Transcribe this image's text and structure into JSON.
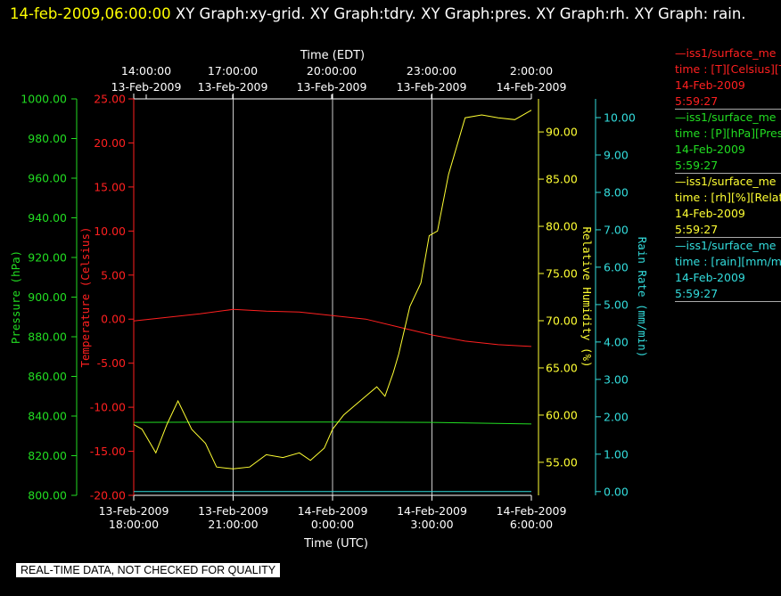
{
  "header": {
    "timestamp": "14-feb-2009,06:00:00",
    "graphs": "  XY Graph:xy-grid.  XY Graph:tdry.  XY Graph:pres.  XY Graph:rh.  XY Graph: rain."
  },
  "legend": [
    {
      "id": "tdry",
      "head": "—iss1/surface_me",
      "line1": "time : [T][Celsius][T",
      "line2": "14-Feb-2009",
      "line3": "5:59:27",
      "color": "#ff2020"
    },
    {
      "id": "pres",
      "head": "—iss1/surface_me",
      "line1": "time : [P][hPa][Pres",
      "line2": "14-Feb-2009",
      "line3": "5:59:27",
      "color": "#22dd22"
    },
    {
      "id": "rh",
      "head": "—iss1/surface_me",
      "line1": "time : [rh][%][Relati",
      "line2": "14-Feb-2009",
      "line3": "5:59:27",
      "color": "#ffff33"
    },
    {
      "id": "rain",
      "head": "—iss1/surface_me",
      "line1": "time : [rain][mm/min",
      "line2": "14-Feb-2009",
      "line3": "5:59:27",
      "color": "#33dddd"
    }
  ],
  "quality_note": "REAL-TIME DATA, NOT CHECKED FOR QUALITY",
  "chart_data": {
    "type": "line",
    "x_top_label": "Time (EDT)",
    "x_bottom_label": "Time (UTC)",
    "x_ticks_top": [
      {
        "t": "14:00:00",
        "d": "13-Feb-2009"
      },
      {
        "t": "17:00:00",
        "d": "13-Feb-2009"
      },
      {
        "t": "20:00:00",
        "d": "13-Feb-2009"
      },
      {
        "t": "23:00:00",
        "d": "13-Feb-2009"
      },
      {
        "t": "2:00:00",
        "d": "14-Feb-2009"
      }
    ],
    "x_ticks_bottom": [
      {
        "d": "13-Feb-2009",
        "t": "18:00:00"
      },
      {
        "d": "13-Feb-2009",
        "t": "21:00:00"
      },
      {
        "d": "14-Feb-2009",
        "t": "0:00:00"
      },
      {
        "d": "14-Feb-2009",
        "t": "3:00:00"
      },
      {
        "d": "14-Feb-2009",
        "t": "6:00:00"
      }
    ],
    "x_range_utc": [
      "2009-02-13 18:00:00",
      "2009-02-14 06:00:00"
    ],
    "grid": "vertical",
    "axes": {
      "pressure": {
        "label": "Pressure (hPa)",
        "min": 800,
        "max": 1000,
        "color": "#22dd22",
        "ticks": [
          "800.00",
          "820.00",
          "840.00",
          "860.00",
          "880.00",
          "900.00",
          "920.00",
          "940.00",
          "960.00",
          "980.00",
          "1000.00"
        ]
      },
      "temperature": {
        "label": "Temperature (Celsius)",
        "min": -20,
        "max": 25,
        "color": "#ff2020",
        "ticks": [
          "-20.00",
          "-15.00",
          "-10.00",
          "-5.00",
          "0.00",
          "5.00",
          "10.00",
          "15.00",
          "20.00",
          "25.00"
        ]
      },
      "rh": {
        "label": "Relative Humidity (%)",
        "min": 51.5,
        "max": 93.5,
        "color": "#ffff33",
        "ticks": [
          "55.00",
          "60.00",
          "65.00",
          "70.00",
          "75.00",
          "80.00",
          "85.00",
          "90.00"
        ]
      },
      "rain": {
        "label": "Rain Rate (mm/min)",
        "min": -0.1,
        "max": 10.5,
        "color": "#33dddd",
        "ticks": [
          "0.00",
          "1.00",
          "2.00",
          "3.00",
          "4.00",
          "5.00",
          "6.00",
          "7.00",
          "8.00",
          "9.00",
          "10.00"
        ]
      }
    },
    "series": [
      {
        "id": "tdry",
        "axis": "temperature",
        "color": "#ff2020",
        "x": [
          "2009-02-13 18:00",
          "2009-02-13 19:00",
          "2009-02-13 20:00",
          "2009-02-13 21:00",
          "2009-02-13 22:00",
          "2009-02-13 23:00",
          "2009-02-14 00:00",
          "2009-02-14 01:00",
          "2009-02-14 02:00",
          "2009-02-14 03:00",
          "2009-02-14 04:00",
          "2009-02-14 05:00",
          "2009-02-14 06:00"
        ],
        "values": [
          -0.2,
          0.2,
          0.6,
          1.1,
          0.9,
          0.8,
          0.4,
          0.0,
          -0.9,
          -1.8,
          -2.5,
          -2.9,
          -3.1
        ]
      },
      {
        "id": "pres",
        "axis": "pressure",
        "color": "#22dd22",
        "x": [
          "2009-02-13 18:00",
          "2009-02-13 21:00",
          "2009-02-14 00:00",
          "2009-02-14 03:00",
          "2009-02-14 06:00"
        ],
        "values": [
          836.8,
          837.0,
          837.0,
          836.8,
          836.0
        ]
      },
      {
        "id": "rh",
        "axis": "rh",
        "color": "#ffff33",
        "x": [
          "2009-02-13 18:00",
          "2009-02-13 18:15",
          "2009-02-13 18:40",
          "2009-02-13 19:00",
          "2009-02-13 19:20",
          "2009-02-13 19:45",
          "2009-02-13 20:10",
          "2009-02-13 20:30",
          "2009-02-13 21:00",
          "2009-02-13 21:30",
          "2009-02-13 22:00",
          "2009-02-13 22:30",
          "2009-02-13 23:00",
          "2009-02-13 23:20",
          "2009-02-13 23:45",
          "2009-02-14 00:00",
          "2009-02-14 00:20",
          "2009-02-14 00:40",
          "2009-02-14 01:00",
          "2009-02-14 01:20",
          "2009-02-14 01:35",
          "2009-02-14 01:50",
          "2009-02-14 02:00",
          "2009-02-14 02:20",
          "2009-02-14 02:40",
          "2009-02-14 02:55",
          "2009-02-14 03:10",
          "2009-02-14 03:30",
          "2009-02-14 04:00",
          "2009-02-14 04:30",
          "2009-02-14 05:00",
          "2009-02-14 05:30",
          "2009-02-14 06:00"
        ],
        "values": [
          59.0,
          58.5,
          56.0,
          59.0,
          61.5,
          58.5,
          57.0,
          54.5,
          54.3,
          54.5,
          55.8,
          55.5,
          56.0,
          55.2,
          56.5,
          58.5,
          60.0,
          61.0,
          62.0,
          63.0,
          62.0,
          64.5,
          66.5,
          71.5,
          74.0,
          79.0,
          79.5,
          85.5,
          91.5,
          91.8,
          91.5,
          91.3,
          92.3
        ]
      },
      {
        "id": "rain",
        "axis": "rain",
        "color": "#33dddd",
        "x": [
          "2009-02-13 18:00",
          "2009-02-14 06:00"
        ],
        "values": [
          0.0,
          0.0
        ]
      }
    ]
  }
}
